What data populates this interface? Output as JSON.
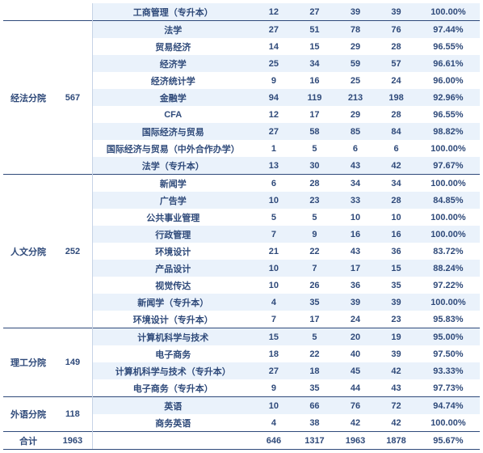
{
  "groups": [
    {
      "name": "",
      "count": "",
      "header_border": false,
      "continuation": true,
      "rows": [
        {
          "major": "工商管理（专升本）",
          "c1": "12",
          "c2": "27",
          "c3": "39",
          "c4": "39",
          "pct": "100.00%",
          "zebra": 1
        }
      ]
    },
    {
      "name": "经法分院",
      "count": "567",
      "header_border": true,
      "rows": [
        {
          "major": "法学",
          "c1": "27",
          "c2": "51",
          "c3": "78",
          "c4": "76",
          "pct": "97.44%",
          "zebra": 1
        },
        {
          "major": "贸易经济",
          "c1": "14",
          "c2": "15",
          "c3": "29",
          "c4": "28",
          "pct": "96.55%",
          "zebra": 0
        },
        {
          "major": "经济学",
          "c1": "25",
          "c2": "34",
          "c3": "59",
          "c4": "57",
          "pct": "96.61%",
          "zebra": 1
        },
        {
          "major": "经济统计学",
          "c1": "9",
          "c2": "16",
          "c3": "25",
          "c4": "24",
          "pct": "96.00%",
          "zebra": 0
        },
        {
          "major": "金融学",
          "c1": "94",
          "c2": "119",
          "c3": "213",
          "c4": "198",
          "pct": "92.96%",
          "zebra": 1
        },
        {
          "major": "CFA",
          "c1": "12",
          "c2": "17",
          "c3": "29",
          "c4": "28",
          "pct": "96.55%",
          "zebra": 0
        },
        {
          "major": "国际经济与贸易",
          "c1": "27",
          "c2": "58",
          "c3": "85",
          "c4": "84",
          "pct": "98.82%",
          "zebra": 1
        },
        {
          "major": "国际经济与贸易（中外合作办学）",
          "c1": "1",
          "c2": "5",
          "c3": "6",
          "c4": "6",
          "pct": "100.00%",
          "zebra": 0
        },
        {
          "major": "法学（专升本）",
          "c1": "13",
          "c2": "30",
          "c3": "43",
          "c4": "42",
          "pct": "97.67%",
          "zebra": 1
        }
      ]
    },
    {
      "name": "人文分院",
      "count": "252",
      "header_border": true,
      "rows": [
        {
          "major": "新闻学",
          "c1": "6",
          "c2": "28",
          "c3": "34",
          "c4": "34",
          "pct": "100.00%",
          "zebra": 0
        },
        {
          "major": "广告学",
          "c1": "10",
          "c2": "23",
          "c3": "33",
          "c4": "28",
          "pct": "84.85%",
          "zebra": 1
        },
        {
          "major": "公共事业管理",
          "c1": "5",
          "c2": "5",
          "c3": "10",
          "c4": "10",
          "pct": "100.00%",
          "zebra": 0
        },
        {
          "major": "行政管理",
          "c1": "7",
          "c2": "9",
          "c3": "16",
          "c4": "16",
          "pct": "100.00%",
          "zebra": 1
        },
        {
          "major": "环境设计",
          "c1": "21",
          "c2": "22",
          "c3": "43",
          "c4": "36",
          "pct": "83.72%",
          "zebra": 0
        },
        {
          "major": "产品设计",
          "c1": "10",
          "c2": "7",
          "c3": "17",
          "c4": "15",
          "pct": "88.24%",
          "zebra": 1
        },
        {
          "major": "视觉传达",
          "c1": "10",
          "c2": "26",
          "c3": "36",
          "c4": "35",
          "pct": "97.22%",
          "zebra": 0
        },
        {
          "major": "新闻学（专升本）",
          "c1": "4",
          "c2": "35",
          "c3": "39",
          "c4": "39",
          "pct": "100.00%",
          "zebra": 1
        },
        {
          "major": "环境设计（专升本）",
          "c1": "7",
          "c2": "17",
          "c3": "24",
          "c4": "23",
          "pct": "95.83%",
          "zebra": 0
        }
      ]
    },
    {
      "name": "理工分院",
      "count": "149",
      "header_border": true,
      "rows": [
        {
          "major": "计算机科学与技术",
          "c1": "15",
          "c2": "5",
          "c3": "20",
          "c4": "19",
          "pct": "95.00%",
          "zebra": 1
        },
        {
          "major": "电子商务",
          "c1": "18",
          "c2": "22",
          "c3": "40",
          "c4": "39",
          "pct": "97.50%",
          "zebra": 0
        },
        {
          "major": "计算机科学与技术（专升本）",
          "c1": "27",
          "c2": "18",
          "c3": "45",
          "c4": "42",
          "pct": "93.33%",
          "zebra": 1
        },
        {
          "major": "电子商务（专升本）",
          "c1": "9",
          "c2": "35",
          "c3": "44",
          "c4": "43",
          "pct": "97.73%",
          "zebra": 0
        }
      ]
    },
    {
      "name": "外语分院",
      "count": "118",
      "header_border": true,
      "rows": [
        {
          "major": "英语",
          "c1": "10",
          "c2": "66",
          "c3": "76",
          "c4": "72",
          "pct": "94.74%",
          "zebra": 1
        },
        {
          "major": "商务英语",
          "c1": "4",
          "c2": "38",
          "c3": "42",
          "c4": "42",
          "pct": "100.00%",
          "zebra": 0
        }
      ]
    }
  ],
  "total": {
    "label": "合计",
    "count": "1963",
    "major": "",
    "c1": "646",
    "c2": "1317",
    "c3": "1963",
    "c4": "1878",
    "pct": "95.67%"
  },
  "colors": {
    "text": "#2f4a7a",
    "zebra_even": "#ffffff",
    "zebra_odd": "#eaf2fb",
    "border": "#2f4a7a"
  }
}
